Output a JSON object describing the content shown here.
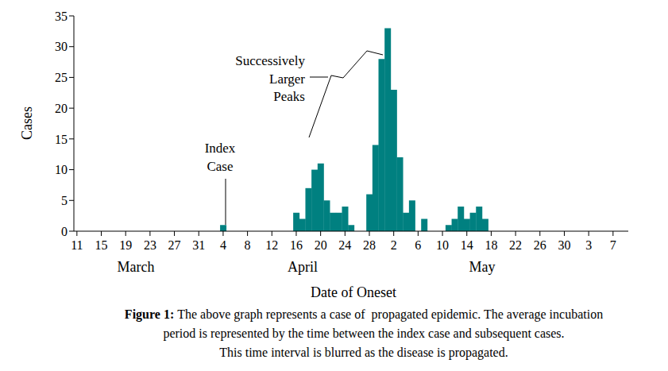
{
  "chart_data": {
    "type": "bar",
    "x_label": "Date of Oneset",
    "y_label": "Cases",
    "categories": [
      "11",
      null,
      null,
      null,
      "15",
      null,
      null,
      null,
      "19",
      null,
      null,
      null,
      "23",
      null,
      null,
      null,
      "27",
      null,
      null,
      null,
      "31",
      null,
      null,
      null,
      "4",
      null,
      null,
      null,
      "8",
      null,
      null,
      null,
      "12",
      null,
      null,
      null,
      "16",
      null,
      null,
      null,
      "20",
      null,
      null,
      null,
      "24",
      null,
      null,
      null,
      "28",
      null,
      null,
      null,
      "2",
      null,
      null,
      null,
      "6",
      null,
      null,
      null,
      "10",
      null,
      null,
      null,
      "14",
      null,
      null,
      null,
      "18",
      null,
      null,
      null,
      "22",
      null,
      null,
      null,
      "26",
      null,
      null,
      null,
      "30",
      null,
      null,
      null,
      "3",
      null,
      null,
      null,
      "7",
      null,
      null
    ],
    "values": [
      0,
      0,
      0,
      0,
      0,
      0,
      0,
      0,
      0,
      0,
      0,
      0,
      0,
      0,
      0,
      0,
      0,
      0,
      0,
      0,
      0,
      0,
      0,
      0,
      1,
      0,
      0,
      0,
      0,
      0,
      0,
      0,
      0,
      0,
      0,
      0,
      3,
      2,
      7,
      10,
      11,
      5,
      3,
      3,
      4,
      1,
      0,
      0,
      6,
      14,
      28,
      33,
      23,
      12,
      3,
      5,
      0,
      2,
      0,
      0,
      0,
      1,
      2,
      4,
      2,
      3,
      4,
      2,
      0,
      0,
      0,
      0,
      0,
      0,
      0,
      0,
      0,
      0,
      0,
      0,
      0,
      0,
      0,
      0,
      0,
      0,
      0,
      0,
      0,
      0,
      0
    ],
    "color": "#008080",
    "ylim": [
      0,
      35
    ],
    "yticks": [
      0,
      5,
      10,
      15,
      20,
      25,
      30,
      35
    ],
    "grid": false,
    "month_labels": [
      "March",
      "April",
      "May"
    ],
    "annotations": [
      "Index Case",
      "Successively Larger Peaks"
    ],
    "caption": {
      "label": "Figure 1:",
      "lines": [
        "The above graph represents a case of  propagated epidemic. The average incubation",
        "period is represented by the time between the index case and subsequent cases.",
        "This time interval is blurred as the disease is propagated."
      ]
    }
  }
}
